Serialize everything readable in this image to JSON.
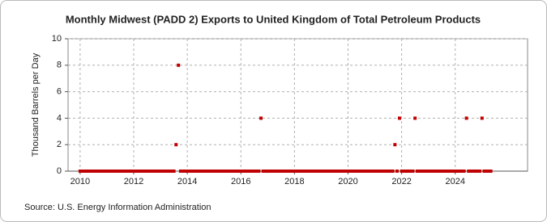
{
  "chart_data": {
    "type": "scatter",
    "title": "Monthly Midwest (PADD 2) Exports to United Kingdom of Total Petroleum Products",
    "y_label": "Thousand Barrels per Day",
    "source": "Source: U.S. Energy Information Administration",
    "color": "#c00000",
    "grid": true,
    "xlim": [
      2009.55,
      2026.7
    ],
    "xticks": [
      2010,
      2012,
      2014,
      2016,
      2018,
      2020,
      2022,
      2024
    ],
    "ylim": [
      0,
      10
    ],
    "yticks": [
      0,
      2,
      4,
      6,
      8,
      10
    ],
    "x": [
      2010,
      2010.08,
      2010.17,
      2010.25,
      2010.33,
      2010.42,
      2010.5,
      2010.58,
      2010.67,
      2010.75,
      2010.83,
      2010.92,
      2011,
      2011.08,
      2011.17,
      2011.25,
      2011.33,
      2011.42,
      2011.5,
      2011.58,
      2011.67,
      2011.75,
      2011.83,
      2011.92,
      2012,
      2012.08,
      2012.17,
      2012.25,
      2012.33,
      2012.42,
      2012.5,
      2012.58,
      2012.67,
      2012.75,
      2012.83,
      2012.92,
      2013,
      2013.08,
      2013.17,
      2013.25,
      2013.33,
      2013.42,
      2013.5,
      2013.58,
      2013.67,
      2013.75,
      2013.83,
      2013.92,
      2014,
      2014.08,
      2014.17,
      2014.25,
      2014.33,
      2014.42,
      2014.5,
      2014.58,
      2014.67,
      2014.75,
      2014.83,
      2014.92,
      2015,
      2015.08,
      2015.17,
      2015.25,
      2015.33,
      2015.42,
      2015.5,
      2015.58,
      2015.67,
      2015.75,
      2015.83,
      2015.92,
      2016,
      2016.08,
      2016.17,
      2016.25,
      2016.33,
      2016.42,
      2016.5,
      2016.58,
      2016.67,
      2016.75,
      2016.83,
      2016.92,
      2017,
      2017.08,
      2017.17,
      2017.25,
      2017.33,
      2017.42,
      2017.5,
      2017.58,
      2017.67,
      2017.75,
      2017.83,
      2017.92,
      2018,
      2018.08,
      2018.17,
      2018.25,
      2018.33,
      2018.42,
      2018.5,
      2018.58,
      2018.67,
      2018.75,
      2018.83,
      2018.92,
      2019,
      2019.08,
      2019.17,
      2019.25,
      2019.33,
      2019.42,
      2019.5,
      2019.58,
      2019.67,
      2019.75,
      2019.83,
      2019.92,
      2020,
      2020.08,
      2020.17,
      2020.25,
      2020.33,
      2020.42,
      2020.5,
      2020.58,
      2020.67,
      2020.75,
      2020.83,
      2020.92,
      2021,
      2021.08,
      2021.17,
      2021.25,
      2021.33,
      2021.42,
      2021.5,
      2021.58,
      2021.67,
      2021.75,
      2021.83,
      2021.92,
      2022,
      2022.08,
      2022.17,
      2022.25,
      2022.33,
      2022.42,
      2022.5,
      2022.58,
      2022.67,
      2022.75,
      2022.83,
      2022.92,
      2023,
      2023.08,
      2023.17,
      2023.25,
      2023.33,
      2023.42,
      2023.5,
      2023.58,
      2023.67,
      2023.75,
      2023.83,
      2023.92,
      2024,
      2024.08,
      2024.17,
      2024.25,
      2024.33,
      2024.42,
      2024.5,
      2024.58,
      2024.67,
      2024.75,
      2024.83,
      2024.92,
      2025,
      2025.08,
      2025.17,
      2025.25,
      2025.33
    ],
    "values": [
      0,
      0,
      0,
      0,
      0,
      0,
      0,
      0,
      0,
      0,
      0,
      0,
      0,
      0,
      0,
      0,
      0,
      0,
      0,
      0,
      0,
      0,
      0,
      0,
      0,
      0,
      0,
      0,
      0,
      0,
      0,
      0,
      0,
      0,
      0,
      0,
      0,
      0,
      0,
      0,
      0,
      0,
      0,
      2,
      8,
      0,
      0,
      0,
      0,
      0,
      0,
      0,
      0,
      0,
      0,
      0,
      0,
      0,
      0,
      0,
      0,
      0,
      0,
      0,
      0,
      0,
      0,
      0,
      0,
      0,
      0,
      0,
      0,
      0,
      0,
      0,
      0,
      0,
      0,
      0,
      0,
      4,
      0,
      0,
      0,
      0,
      0,
      0,
      0,
      0,
      0,
      0,
      0,
      0,
      0,
      0,
      0,
      0,
      0,
      0,
      0,
      0,
      0,
      0,
      0,
      0,
      0,
      0,
      0,
      0,
      0,
      0,
      0,
      0,
      0,
      0,
      0,
      0,
      0,
      0,
      0,
      0,
      0,
      0,
      0,
      0,
      0,
      0,
      0,
      0,
      0,
      0,
      0,
      0,
      0,
      0,
      0,
      0,
      0,
      0,
      0,
      2,
      0,
      4,
      0,
      0,
      0,
      0,
      0,
      0,
      4,
      0,
      0,
      0,
      0,
      0,
      0,
      0,
      0,
      0,
      0,
      0,
      0,
      0,
      0,
      0,
      0,
      0,
      0,
      0,
      0,
      0,
      0,
      4,
      0,
      0,
      0,
      0,
      0,
      0,
      4,
      0,
      0,
      0,
      0
    ]
  }
}
